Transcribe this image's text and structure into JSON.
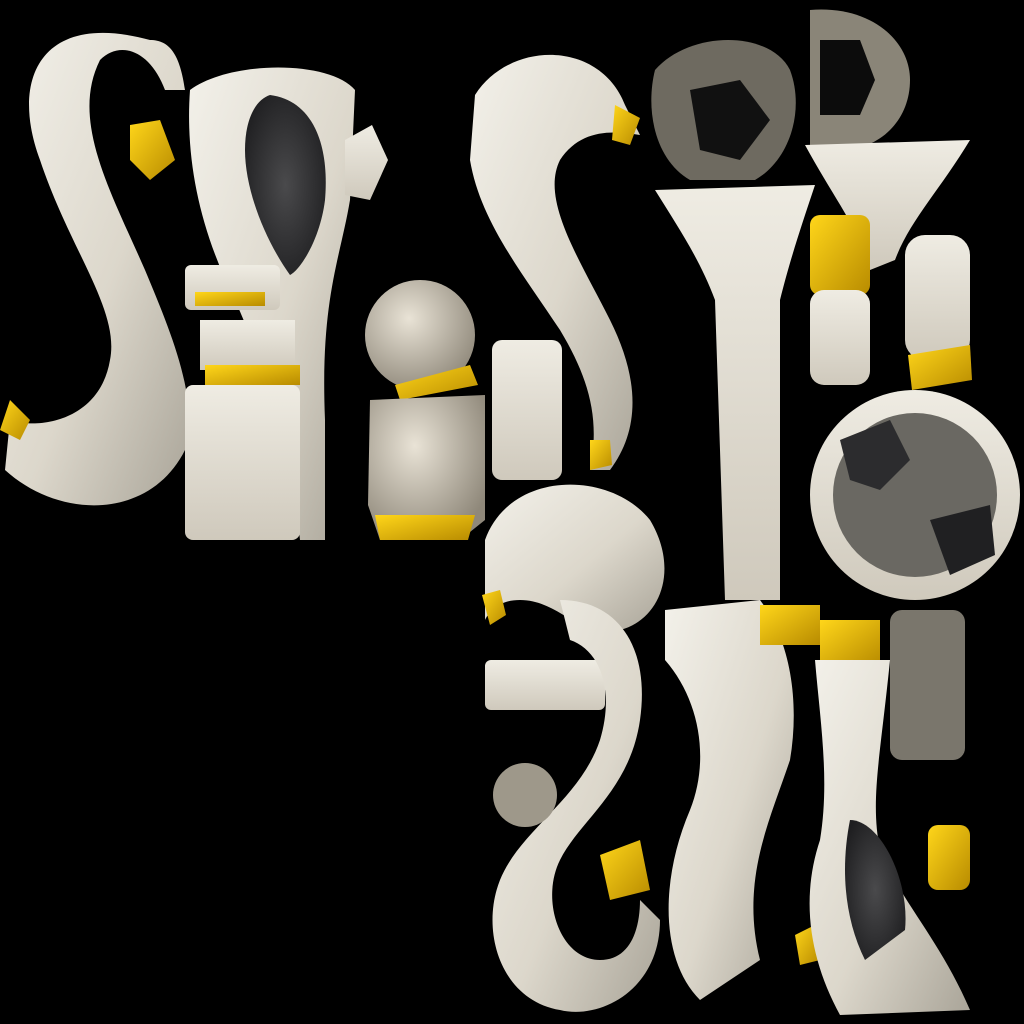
{
  "texture": {
    "kind": "uv-texture-atlas",
    "palette": {
      "background": "#000000",
      "porcelain_light": "#F0EEE5",
      "porcelain_mid": "#D6D1C4",
      "porcelain_shadow": "#8E8A80",
      "dark_cavity": "#2E2E30",
      "gold": "#F2C200",
      "gold_dark": "#A07A00"
    },
    "parts": [
      "s-curve-handle",
      "spoon-blade",
      "leaf-pad",
      "ring-piece",
      "stem-piece",
      "bulb-piece",
      "gold-collar",
      "round-disc"
    ]
  }
}
